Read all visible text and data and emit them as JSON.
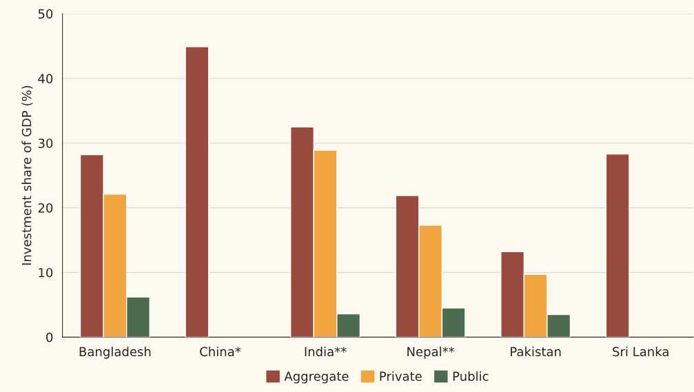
{
  "chart_data": {
    "type": "bar",
    "ylabel": "Investment share of GDP (%)",
    "categories": [
      "Bangladesh",
      "China*",
      "India**",
      "Nepal**",
      "Pakistan",
      "Sri Lanka"
    ],
    "series": [
      {
        "name": "Aggregate",
        "color": "#9a4a3c",
        "values": [
          28.2,
          44.9,
          32.5,
          21.9,
          13.2,
          28.3
        ]
      },
      {
        "name": "Private",
        "color": "#f0a540",
        "values": [
          22.1,
          null,
          28.9,
          17.3,
          9.7,
          null
        ]
      },
      {
        "name": "Public",
        "color": "#4d6b4f",
        "values": [
          6.2,
          null,
          3.6,
          4.5,
          3.5,
          null
        ]
      }
    ],
    "ylim": [
      0,
      50
    ],
    "yticks": [
      0,
      10,
      20,
      30,
      40,
      50
    ],
    "grid": "y",
    "legend": "bottom"
  }
}
